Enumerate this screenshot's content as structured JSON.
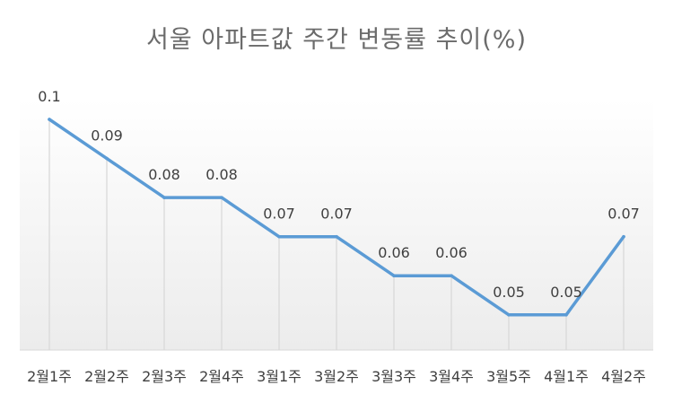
{
  "chart_data": {
    "type": "line",
    "title": "서울 아파트값 주간 변동률 추이(%)",
    "xlabel": "",
    "ylabel": "",
    "categories": [
      "2월1주",
      "2월2주",
      "2월3주",
      "2월4주",
      "3월1주",
      "3월2주",
      "3월3주",
      "3월4주",
      "3월5주",
      "4월1주",
      "4월2주"
    ],
    "series": [
      {
        "values": [
          0.1,
          0.09,
          0.08,
          0.08,
          0.07,
          0.07,
          0.06,
          0.06,
          0.05,
          0.05,
          0.07
        ],
        "labels": [
          "0.1",
          "0.09",
          "0.08",
          "0.08",
          "0.07",
          "0.07",
          "0.06",
          "0.06",
          "0.05",
          "0.05",
          "0.07"
        ]
      }
    ],
    "ylim": [
      0.041,
      0.1
    ],
    "grid": false,
    "drop_lines": true,
    "line_color": "#5b9bd5",
    "drop_line_color": "#d9d9d9"
  }
}
